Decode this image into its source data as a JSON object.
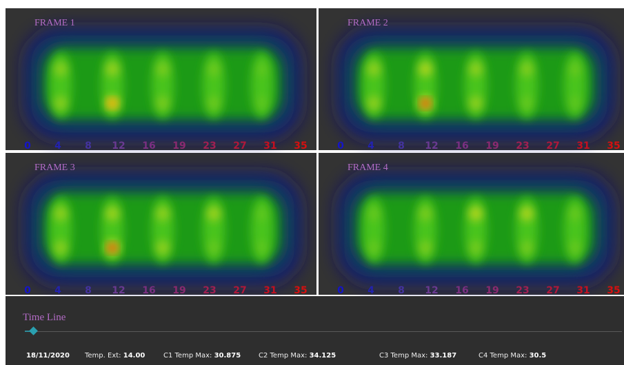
{
  "frames": [
    {
      "title": "FRAME 1"
    },
    {
      "title": "FRAME 2"
    },
    {
      "title": "FRAME 3"
    },
    {
      "title": "FRAME 4"
    }
  ],
  "scale_labels": [
    "0",
    "4",
    "8",
    "12",
    "16",
    "19",
    "23",
    "27",
    "31",
    "35"
  ],
  "timeline": {
    "title": "Time Line"
  },
  "footer": {
    "date": "18/11/2020",
    "fields": [
      {
        "label": "Temp. Ext:",
        "value": "14.00"
      },
      {
        "label": "C1 Temp Max:",
        "value": "30.875"
      },
      {
        "label": "C2 Temp Max:",
        "value": "34.125"
      },
      {
        "label": "C3 Temp Max:",
        "value": "33.187"
      },
      {
        "label": "C4 Temp Max:",
        "value": "30.5"
      }
    ]
  }
}
